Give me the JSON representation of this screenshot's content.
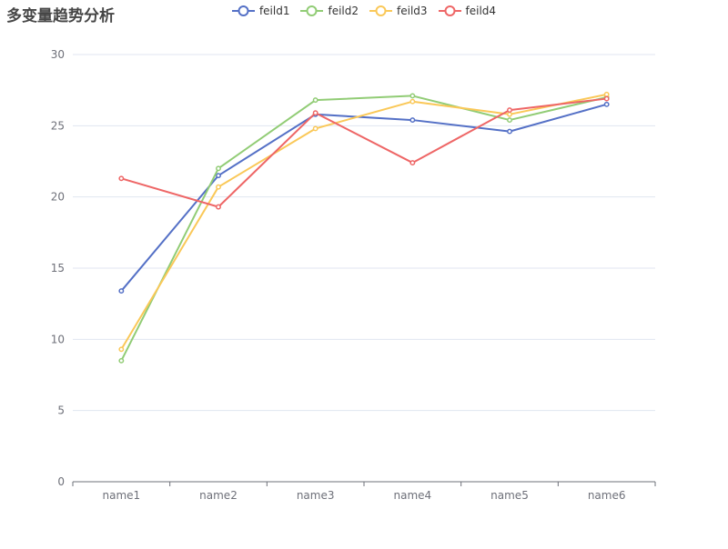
{
  "chart_data": {
    "type": "line",
    "title": "多变量趋势分析",
    "categories": [
      "name1",
      "name2",
      "name3",
      "name4",
      "name5",
      "name6"
    ],
    "ylim": [
      0,
      30
    ],
    "yticks": [
      0,
      5,
      10,
      15,
      20,
      25,
      30
    ],
    "grid": true,
    "legend_position": "top-center",
    "series": [
      {
        "name": "feild1",
        "color": "#5470c6",
        "values": [
          13.4,
          21.5,
          25.8,
          25.4,
          24.6,
          26.5
        ]
      },
      {
        "name": "feild2",
        "color": "#91cc75",
        "values": [
          8.5,
          22.0,
          26.8,
          27.1,
          25.4,
          27.0
        ]
      },
      {
        "name": "feild3",
        "color": "#fac858",
        "values": [
          9.3,
          20.7,
          24.8,
          26.7,
          25.8,
          27.2
        ]
      },
      {
        "name": "feild4",
        "color": "#ee6666",
        "values": [
          21.3,
          19.3,
          25.9,
          22.4,
          26.1,
          26.9
        ]
      }
    ]
  }
}
